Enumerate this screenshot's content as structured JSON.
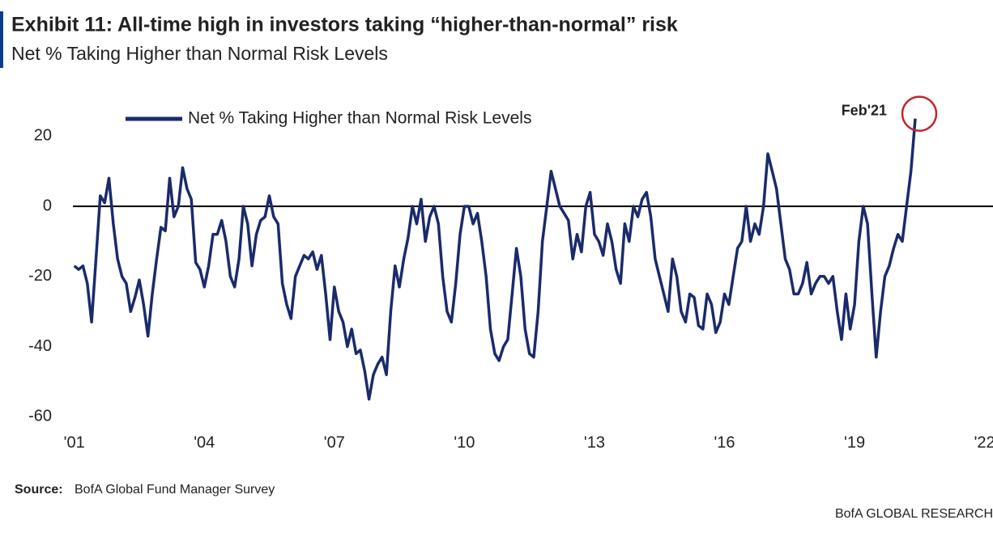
{
  "chart_data": {
    "type": "line",
    "title": "Exhibit 11: All-time high in investors taking “higher-than-normal” risk",
    "subtitle": "Net % Taking Higher than Normal Risk Levels",
    "source_label": "Source:",
    "source": "BofA Global Fund Manager Survey",
    "footer": "BofA GLOBAL RESEARCH",
    "annotation": "Feb'21",
    "x": [
      2001,
      2001.1,
      2001.2,
      2001.3,
      2001.4,
      2001.5,
      2001.6,
      2001.7,
      2001.8,
      2001.9,
      2002,
      2002.1,
      2002.2,
      2002.3,
      2002.4,
      2002.5,
      2002.6,
      2002.7,
      2002.8,
      2002.9,
      2003,
      2003.1,
      2003.2,
      2003.3,
      2003.4,
      2003.5,
      2003.6,
      2003.7,
      2003.8,
      2003.9,
      2004,
      2004.1,
      2004.2,
      2004.3,
      2004.4,
      2004.5,
      2004.6,
      2004.7,
      2004.8,
      2004.9,
      2005,
      2005.1,
      2005.2,
      2005.3,
      2005.4,
      2005.5,
      2005.6,
      2005.7,
      2005.8,
      2005.9,
      2006,
      2006.1,
      2006.2,
      2006.3,
      2006.4,
      2006.5,
      2006.6,
      2006.7,
      2006.8,
      2006.9,
      2007,
      2007.1,
      2007.2,
      2007.3,
      2007.4,
      2007.5,
      2007.6,
      2007.7,
      2007.8,
      2007.9,
      2008,
      2008.1,
      2008.2,
      2008.3,
      2008.4,
      2008.5,
      2008.6,
      2008.7,
      2008.8,
      2008.9,
      2009,
      2009.1,
      2009.2,
      2009.3,
      2009.4,
      2009.5,
      2009.6,
      2009.7,
      2009.8,
      2009.9,
      2010,
      2010.1,
      2010.2,
      2010.3,
      2010.4,
      2010.5,
      2010.6,
      2010.7,
      2010.8,
      2010.9,
      2011,
      2011.1,
      2011.2,
      2011.3,
      2011.4,
      2011.5,
      2011.6,
      2011.7,
      2011.8,
      2011.9,
      2012,
      2012.1,
      2012.2,
      2012.3,
      2012.4,
      2012.5,
      2012.6,
      2012.7,
      2012.8,
      2012.9,
      2013,
      2013.1,
      2013.2,
      2013.3,
      2013.4,
      2013.5,
      2013.6,
      2013.7,
      2013.8,
      2013.9,
      2014,
      2014.1,
      2014.2,
      2014.3,
      2014.4,
      2014.5,
      2014.6,
      2014.7,
      2014.8,
      2014.9,
      2015,
      2015.1,
      2015.2,
      2015.3,
      2015.4,
      2015.5,
      2015.6,
      2015.7,
      2015.8,
      2015.9,
      2016,
      2016.1,
      2016.2,
      2016.3,
      2016.4,
      2016.5,
      2016.6,
      2016.7,
      2016.8,
      2016.9,
      2017,
      2017.1,
      2017.2,
      2017.3,
      2017.4,
      2017.5,
      2017.6,
      2017.7,
      2017.8,
      2017.9,
      2018,
      2018.1,
      2018.2,
      2018.3,
      2018.4,
      2018.5,
      2018.6,
      2018.7,
      2018.8,
      2018.9,
      2019,
      2019.1,
      2019.2,
      2019.3,
      2019.4,
      2019.5,
      2019.6,
      2019.7,
      2019.8,
      2019.9,
      2020,
      2020.1,
      2020.2,
      2020.3,
      2020.4
    ],
    "series": [
      {
        "name": "Net % Taking Higher than Normal Risk Levels",
        "color": "#1a2b6b",
        "values": [
          -17,
          -18,
          -17,
          -22,
          -33,
          -15,
          3,
          1,
          8,
          -5,
          -15,
          -20,
          -22,
          -30,
          -26,
          -21,
          -28,
          -37,
          -25,
          -15,
          -6,
          -7,
          8,
          -3,
          0,
          11,
          5,
          2,
          -16,
          -18,
          -23,
          -17,
          -8,
          -8,
          -4,
          -10,
          -20,
          -23,
          -15,
          0,
          -5,
          -17,
          -8,
          -4,
          -3,
          3,
          -3,
          -5,
          -22,
          -28,
          -32,
          -20,
          -17,
          -14,
          -15,
          -13,
          -18,
          -14,
          -25,
          -38,
          -23,
          -30,
          -33,
          -40,
          -35,
          -42,
          -41,
          -47,
          -55,
          -48,
          -45,
          -43,
          -48,
          -30,
          -17,
          -23,
          -15,
          -9,
          0,
          -5,
          2,
          -10,
          -3,
          0,
          -5,
          -20,
          -30,
          -33,
          -22,
          -8,
          0,
          0,
          -5,
          -2,
          -10,
          -20,
          -35,
          -42,
          -44,
          -40,
          -38,
          -25,
          -12,
          -20,
          -35,
          -42,
          -43,
          -30,
          -10,
          0,
          10,
          5,
          0,
          -2,
          -4,
          -15,
          -8,
          -13,
          0,
          4,
          -8,
          -10,
          -14,
          -5,
          -10,
          -18,
          -22,
          -5,
          -10,
          0,
          -3,
          2,
          4,
          -3,
          -15,
          -20,
          -25,
          -30,
          -15,
          -20,
          -30,
          -33,
          -25,
          -26,
          -34,
          -35,
          -25,
          -28,
          -36,
          -33,
          -25,
          -28,
          -20,
          -12,
          -10,
          0,
          -10,
          -5,
          -8,
          0,
          15,
          10,
          5,
          -5,
          -15,
          -18,
          -25,
          -25,
          -22,
          -16,
          -25,
          -22,
          -20,
          -20,
          -22,
          -20,
          -30,
          -38,
          -25,
          -35,
          -28,
          -10,
          0,
          -5,
          -25,
          -43,
          -30,
          -20,
          -17,
          -12,
          -8,
          -10,
          0,
          10,
          25
        ]
      }
    ],
    "xlim": [
      2000.8,
      2022.1
    ],
    "xticks": [
      {
        "value": 2001,
        "label": "'01"
      },
      {
        "value": 2004,
        "label": "'04"
      },
      {
        "value": 2007,
        "label": "'07"
      },
      {
        "value": 2010,
        "label": "'10"
      },
      {
        "value": 2013,
        "label": "'13"
      },
      {
        "value": 2016,
        "label": "'16"
      },
      {
        "value": 2019,
        "label": "'19"
      },
      {
        "value": 2022,
        "label": "'22"
      }
    ],
    "ylim": [
      -65,
      30
    ],
    "yticks": [
      -60,
      -40,
      -20,
      0,
      20
    ],
    "zero_line": true,
    "grid": false,
    "legend": "top-left",
    "annotation_color": "#c0262d"
  }
}
